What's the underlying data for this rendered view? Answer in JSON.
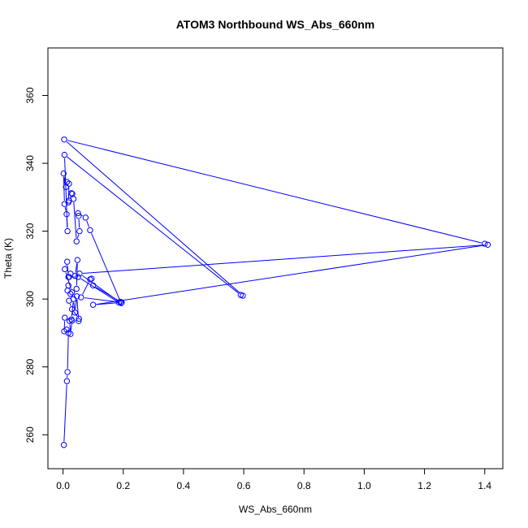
{
  "chart_data": {
    "type": "scatter",
    "title": "ATOM3 Northbound WS_Abs_660nm",
    "xlabel": "WS_Abs_660nm",
    "ylabel": "Theta (K)",
    "xlim": [
      -0.05,
      1.46
    ],
    "ylim": [
      250,
      374
    ],
    "xticks": [
      "0.0",
      "0.2",
      "0.4",
      "0.6",
      "0.8",
      "1.0",
      "1.2",
      "1.4"
    ],
    "xtick_values": [
      0.0,
      0.2,
      0.4,
      0.6,
      0.8,
      1.0,
      1.2,
      1.4
    ],
    "yticks": [
      "260",
      "280",
      "300",
      "320",
      "340",
      "360"
    ],
    "ytick_values": [
      260,
      280,
      300,
      320,
      340,
      360
    ],
    "grid": false,
    "series": [
      {
        "color": "#0000ff",
        "marker": "open-circle",
        "line": "connected",
        "points": [
          [
            0.003,
            257.0
          ],
          [
            0.013,
            275.8
          ],
          [
            0.015,
            278.5
          ],
          [
            0.018,
            290.0
          ],
          [
            0.012,
            291.0
          ],
          [
            0.004,
            290.5
          ],
          [
            0.006,
            294.5
          ],
          [
            0.022,
            293.5
          ],
          [
            0.025,
            289.7
          ],
          [
            0.03,
            293.6
          ],
          [
            0.028,
            294.0
          ],
          [
            0.035,
            300.0
          ],
          [
            0.04,
            296.0
          ],
          [
            0.046,
            300.8
          ],
          [
            0.052,
            293.5
          ],
          [
            0.053,
            294.2
          ],
          [
            0.03,
            297.0
          ],
          [
            0.02,
            299.5
          ],
          [
            0.025,
            301.5
          ],
          [
            0.015,
            302.5
          ],
          [
            0.018,
            304.0
          ],
          [
            0.02,
            306.5
          ],
          [
            0.025,
            307.5
          ],
          [
            0.04,
            306.8
          ],
          [
            0.048,
            311.5
          ],
          [
            0.045,
            303.0
          ],
          [
            0.03,
            302.0
          ],
          [
            0.006,
            308.8
          ],
          [
            0.014,
            311.0
          ],
          [
            0.018,
            306.5
          ],
          [
            0.05,
            306.5
          ],
          [
            0.185,
            299.0
          ],
          [
            0.19,
            299.2
          ],
          [
            0.1,
            304.0
          ],
          [
            0.095,
            306.0
          ],
          [
            0.09,
            305.8
          ],
          [
            0.06,
            300.5
          ],
          [
            0.195,
            299.0
          ],
          [
            0.1,
            298.3
          ],
          [
            1.41,
            316.0
          ],
          [
            0.055,
            307.5
          ],
          [
            0.193,
            298.8
          ],
          [
            0.09,
            320.3
          ],
          [
            0.075,
            324.0
          ],
          [
            0.05,
            325.3
          ],
          [
            0.052,
            324.5
          ],
          [
            0.055,
            320.0
          ],
          [
            0.045,
            317.0
          ],
          [
            0.035,
            329.5
          ],
          [
            0.031,
            331.0
          ],
          [
            0.028,
            331.2
          ],
          [
            0.02,
            329.0
          ],
          [
            0.018,
            328.5
          ],
          [
            0.02,
            334.0
          ],
          [
            0.013,
            334.5
          ],
          [
            0.01,
            333.0
          ],
          [
            0.002,
            337.0
          ],
          [
            0.005,
            328.0
          ],
          [
            0.012,
            325.0
          ],
          [
            0.015,
            320.0
          ],
          [
            0.005,
            342.5
          ],
          [
            0.59,
            301.2
          ],
          [
            0.597,
            301.0
          ],
          [
            0.004,
            347.0
          ],
          [
            1.4,
            316.3
          ]
        ]
      }
    ]
  }
}
